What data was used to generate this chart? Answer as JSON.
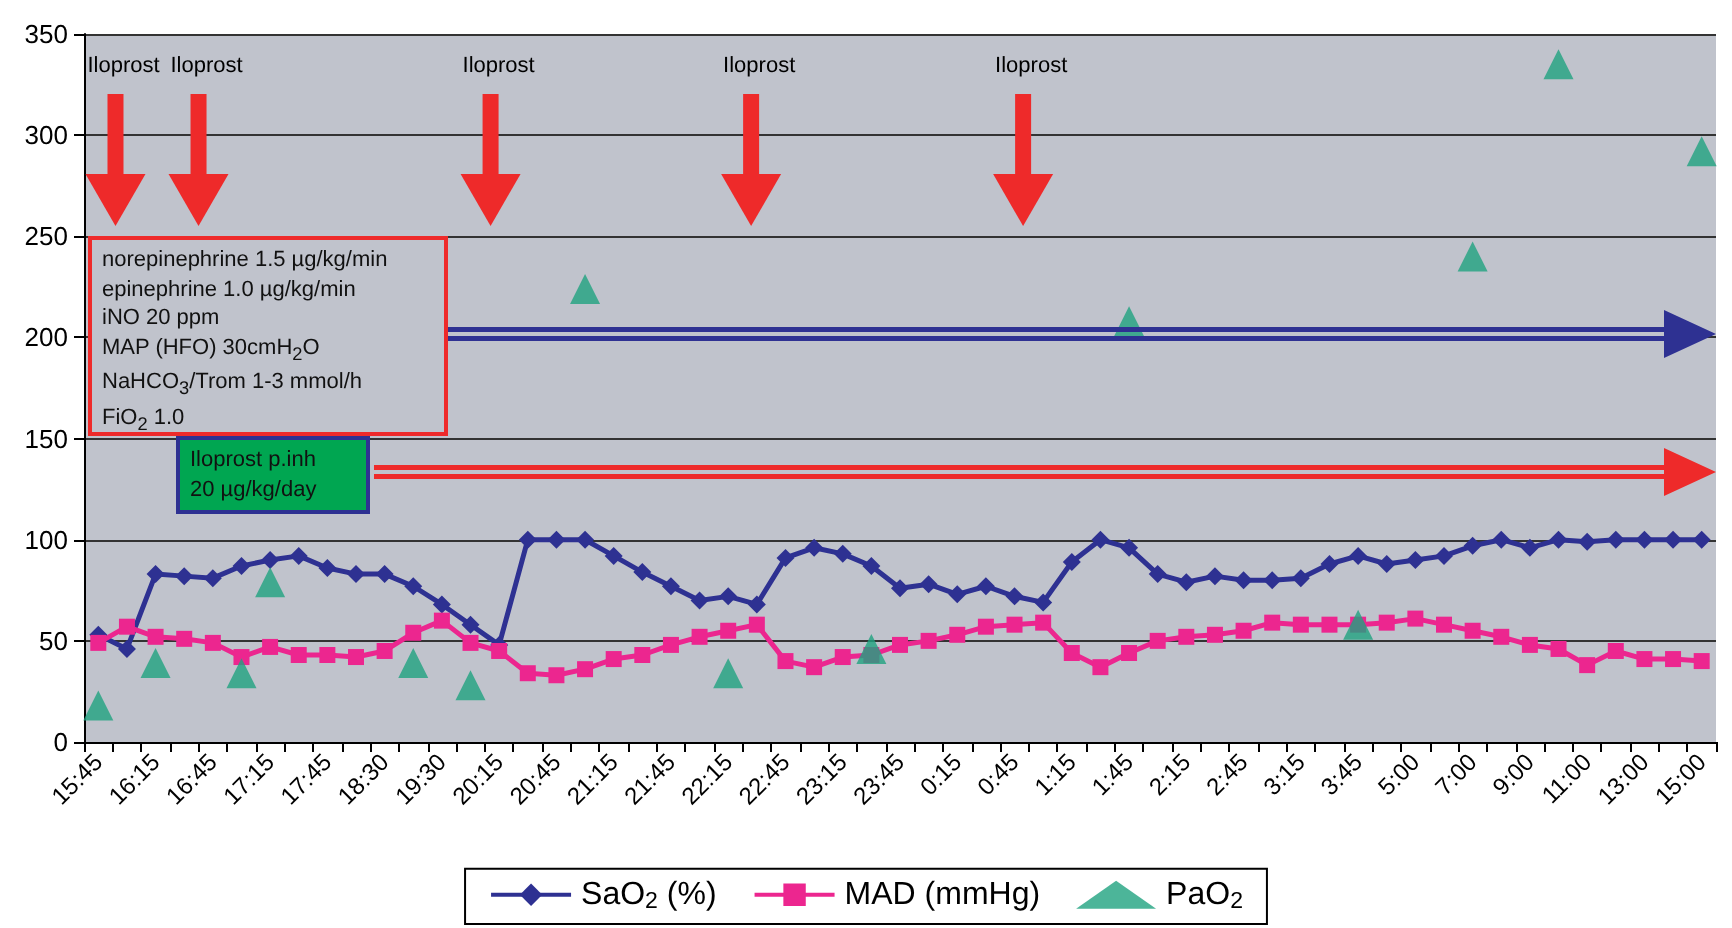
{
  "chart_data": {
    "type": "line",
    "categories": [
      "15:45",
      null,
      "16:15",
      null,
      "16:45",
      null,
      "17:15",
      null,
      "17:45",
      null,
      "18:30",
      null,
      "19:30",
      null,
      "20:15",
      null,
      "20:45",
      null,
      "21:15",
      null,
      "21:45",
      null,
      "22:15",
      null,
      "22:45",
      null,
      "23:15",
      null,
      "23:45",
      null,
      "0:15",
      null,
      "0:45",
      null,
      "1:15",
      null,
      "1:45",
      null,
      "2:15",
      null,
      "2:45",
      null,
      "3:15",
      null,
      "3:45",
      null,
      "5:00",
      null,
      "7:00",
      null,
      "9:00",
      null,
      "11:00",
      null,
      "13:00",
      null,
      "15:00"
    ],
    "series": [
      {
        "name": "SaO$_{2}$ (%)",
        "marker": "diamond",
        "color": "#2e3192",
        "values": [
          53,
          46,
          83,
          82,
          81,
          87,
          90,
          92,
          86,
          83,
          83,
          77,
          68,
          58,
          48,
          100,
          100,
          100,
          92,
          84,
          77,
          70,
          72,
          68,
          91,
          96,
          93,
          87,
          76,
          78,
          73,
          77,
          72,
          69,
          89,
          100,
          96,
          83,
          79,
          82,
          80,
          80,
          81,
          88,
          92,
          88,
          90,
          92,
          97,
          100,
          96,
          100,
          99,
          100,
          100,
          100,
          100
        ]
      },
      {
        "name": "MAD (mmHg)",
        "marker": "square",
        "color": "#ec268f",
        "values": [
          49,
          57,
          52,
          51,
          49,
          42,
          47,
          43,
          43,
          42,
          45,
          54,
          60,
          49,
          45,
          34,
          33,
          36,
          41,
          43,
          48,
          52,
          55,
          58,
          40,
          37,
          42,
          43,
          48,
          50,
          53,
          57,
          58,
          59,
          44,
          37,
          44,
          50,
          52,
          53,
          55,
          59,
          58,
          58,
          58,
          59,
          61,
          58,
          55,
          52,
          48,
          46,
          38,
          45,
          41,
          41,
          40
        ]
      },
      {
        "name": "PaO$_{2}$",
        "type": "scatter",
        "marker": "triangle",
        "color": "#1fa37f",
        "values": [
          18,
          null,
          39,
          null,
          null,
          34,
          79,
          null,
          null,
          null,
          null,
          39,
          null,
          28,
          null,
          null,
          null,
          224,
          null,
          null,
          null,
          null,
          34,
          null,
          null,
          null,
          null,
          46,
          null,
          null,
          null,
          null,
          null,
          null,
          null,
          null,
          208,
          null,
          null,
          null,
          null,
          null,
          null,
          null,
          58,
          null,
          null,
          null,
          240,
          null,
          null,
          335,
          null,
          null,
          null,
          null,
          292
        ]
      }
    ],
    "ylim": [
      0,
      350
    ],
    "yticks": [
      0,
      50,
      100,
      150,
      200,
      250,
      300,
      350
    ],
    "grid": "y",
    "legend": "bottom",
    "annotations": [
      "norepinephrine 1.5 µg/kg/min\nepinephrine 1.0 µg/kg/min\niNO 20 ppm\nMAP (HFO) 30cmH$_{2}$O\nNaHCO$_{3}$/Trom 1-3 mmol/h\nFiO$_{2}$ 1.0",
      "Iloprost p.inh\n20 µg/kg/day",
      "Iloprost",
      "Iloprost",
      "Iloprost",
      "Iloprost",
      "Iloprost"
    ]
  }
}
